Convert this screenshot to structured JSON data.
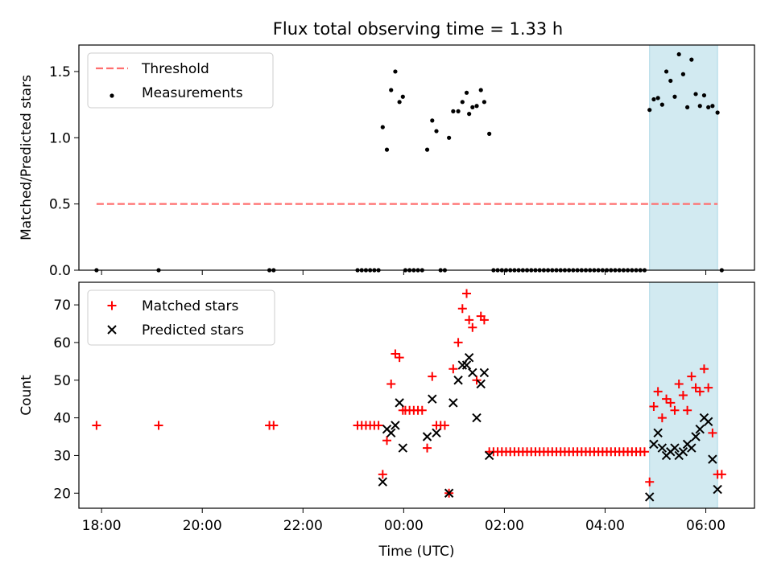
{
  "figure": {
    "title": "Flux total observing time = 1.33 h"
  },
  "chart_data": [
    {
      "type": "scatter",
      "title": "Flux total observing time = 1.33 h",
      "xlabel": "",
      "ylabel": "Matched/Predicted stars",
      "xlim": [
        "17:33",
        "06:58"
      ],
      "ylim": [
        0,
        1.7
      ],
      "yticks": [
        0.0,
        0.5,
        1.0,
        1.5
      ],
      "ytick_labels": [
        "0.0",
        "0.5",
        "1.0",
        "1.5"
      ],
      "x_tick_labels_shown": false,
      "legend_position": "upper left",
      "shaded_interval": {
        "from": "04:53",
        "to": "06:14",
        "color": "#add8e6"
      },
      "threshold": {
        "name": "Threshold",
        "value": 0.5,
        "from": "17:54",
        "to": "06:14",
        "color": "#ff6f6f",
        "style": "dashed"
      },
      "series": [
        {
          "name": "Measurements",
          "color": "#000000",
          "marker": "dot",
          "points": [
            [
              "17:54",
              0.0
            ],
            [
              "19:08",
              0.0
            ],
            [
              "21:20",
              0.0
            ],
            [
              "21:25",
              0.0
            ],
            [
              "23:05",
              0.0
            ],
            [
              "23:10",
              0.0
            ],
            [
              "23:15",
              0.0
            ],
            [
              "23:20",
              0.0
            ],
            [
              "23:25",
              0.0
            ],
            [
              "23:30",
              0.0
            ],
            [
              "23:35",
              1.08
            ],
            [
              "23:40",
              0.91
            ],
            [
              "23:45",
              1.36
            ],
            [
              "23:50",
              1.5
            ],
            [
              "23:55",
              1.27
            ],
            [
              "23:59",
              1.31
            ],
            [
              "00:02",
              0.0
            ],
            [
              "00:07",
              0.0
            ],
            [
              "00:12",
              0.0
            ],
            [
              "00:17",
              0.0
            ],
            [
              "00:22",
              0.0
            ],
            [
              "00:28",
              0.91
            ],
            [
              "00:34",
              1.13
            ],
            [
              "00:39",
              1.05
            ],
            [
              "00:44",
              0.0
            ],
            [
              "00:49",
              0.0
            ],
            [
              "00:54",
              1.0
            ],
            [
              "00:59",
              1.2
            ],
            [
              "01:05",
              1.2
            ],
            [
              "01:10",
              1.27
            ],
            [
              "01:15",
              1.34
            ],
            [
              "01:18",
              1.18
            ],
            [
              "01:22",
              1.23
            ],
            [
              "01:27",
              1.24
            ],
            [
              "01:32",
              1.36
            ],
            [
              "01:36",
              1.27
            ],
            [
              "01:42",
              1.03
            ],
            [
              "01:47",
              0.0
            ],
            [
              "01:52",
              0.0
            ],
            [
              "01:57",
              0.0
            ],
            [
              "02:02",
              0.0
            ],
            [
              "02:07",
              0.0
            ],
            [
              "02:12",
              0.0
            ],
            [
              "02:17",
              0.0
            ],
            [
              "02:22",
              0.0
            ],
            [
              "02:27",
              0.0
            ],
            [
              "02:32",
              0.0
            ],
            [
              "02:37",
              0.0
            ],
            [
              "02:42",
              0.0
            ],
            [
              "02:47",
              0.0
            ],
            [
              "02:52",
              0.0
            ],
            [
              "02:57",
              0.0
            ],
            [
              "03:02",
              0.0
            ],
            [
              "03:07",
              0.0
            ],
            [
              "03:12",
              0.0
            ],
            [
              "03:17",
              0.0
            ],
            [
              "03:22",
              0.0
            ],
            [
              "03:27",
              0.0
            ],
            [
              "03:32",
              0.0
            ],
            [
              "03:37",
              0.0
            ],
            [
              "03:42",
              0.0
            ],
            [
              "03:47",
              0.0
            ],
            [
              "03:52",
              0.0
            ],
            [
              "03:57",
              0.0
            ],
            [
              "04:02",
              0.0
            ],
            [
              "04:07",
              0.0
            ],
            [
              "04:12",
              0.0
            ],
            [
              "04:17",
              0.0
            ],
            [
              "04:22",
              0.0
            ],
            [
              "04:27",
              0.0
            ],
            [
              "04:32",
              0.0
            ],
            [
              "04:37",
              0.0
            ],
            [
              "04:42",
              0.0
            ],
            [
              "04:47",
              0.0
            ],
            [
              "04:53",
              1.21
            ],
            [
              "04:58",
              1.29
            ],
            [
              "05:03",
              1.3
            ],
            [
              "05:08",
              1.25
            ],
            [
              "05:13",
              1.5
            ],
            [
              "05:18",
              1.43
            ],
            [
              "05:23",
              1.31
            ],
            [
              "05:28",
              1.63
            ],
            [
              "05:33",
              1.48
            ],
            [
              "05:38",
              1.23
            ],
            [
              "05:43",
              1.59
            ],
            [
              "05:48",
              1.33
            ],
            [
              "05:53",
              1.24
            ],
            [
              "05:58",
              1.32
            ],
            [
              "06:03",
              1.23
            ],
            [
              "06:08",
              1.24
            ],
            [
              "06:14",
              1.19
            ],
            [
              "06:19",
              0.0
            ]
          ]
        }
      ]
    },
    {
      "type": "scatter",
      "title": "",
      "xlabel": "Time (UTC)",
      "ylabel": "Count",
      "xlim": [
        "17:33",
        "06:58"
      ],
      "ylim": [
        16,
        76
      ],
      "yticks": [
        20,
        30,
        40,
        50,
        60,
        70
      ],
      "ytick_labels": [
        "20",
        "30",
        "40",
        "50",
        "60",
        "70"
      ],
      "xticks": [
        "18:00",
        "20:00",
        "22:00",
        "00:00",
        "02:00",
        "04:00",
        "06:00"
      ],
      "legend_position": "upper left",
      "shaded_interval": {
        "from": "04:53",
        "to": "06:14",
        "color": "#add8e6"
      },
      "series": [
        {
          "name": "Matched stars",
          "color": "#ff0000",
          "marker": "plus",
          "points": [
            [
              "17:54",
              38
            ],
            [
              "19:08",
              38
            ],
            [
              "21:20",
              38
            ],
            [
              "21:25",
              38
            ],
            [
              "23:05",
              38
            ],
            [
              "23:10",
              38
            ],
            [
              "23:15",
              38
            ],
            [
              "23:20",
              38
            ],
            [
              "23:25",
              38
            ],
            [
              "23:30",
              38
            ],
            [
              "23:35",
              25
            ],
            [
              "23:40",
              34
            ],
            [
              "23:45",
              49
            ],
            [
              "23:50",
              57
            ],
            [
              "23:55",
              56
            ],
            [
              "23:59",
              42
            ],
            [
              "00:02",
              42
            ],
            [
              "00:07",
              42
            ],
            [
              "00:12",
              42
            ],
            [
              "00:17",
              42
            ],
            [
              "00:22",
              42
            ],
            [
              "00:28",
              32
            ],
            [
              "00:34",
              51
            ],
            [
              "00:39",
              38
            ],
            [
              "00:44",
              38
            ],
            [
              "00:49",
              38
            ],
            [
              "00:54",
              20
            ],
            [
              "00:59",
              53
            ],
            [
              "01:05",
              60
            ],
            [
              "01:10",
              69
            ],
            [
              "01:15",
              73
            ],
            [
              "01:18",
              66
            ],
            [
              "01:22",
              64
            ],
            [
              "01:27",
              50
            ],
            [
              "01:32",
              67
            ],
            [
              "01:36",
              66
            ],
            [
              "01:42",
              31
            ],
            [
              "01:47",
              31
            ],
            [
              "01:52",
              31
            ],
            [
              "01:57",
              31
            ],
            [
              "02:02",
              31
            ],
            [
              "02:07",
              31
            ],
            [
              "02:12",
              31
            ],
            [
              "02:17",
              31
            ],
            [
              "02:22",
              31
            ],
            [
              "02:27",
              31
            ],
            [
              "02:32",
              31
            ],
            [
              "02:37",
              31
            ],
            [
              "02:42",
              31
            ],
            [
              "02:47",
              31
            ],
            [
              "02:52",
              31
            ],
            [
              "02:57",
              31
            ],
            [
              "03:02",
              31
            ],
            [
              "03:07",
              31
            ],
            [
              "03:12",
              31
            ],
            [
              "03:17",
              31
            ],
            [
              "03:22",
              31
            ],
            [
              "03:27",
              31
            ],
            [
              "03:32",
              31
            ],
            [
              "03:37",
              31
            ],
            [
              "03:42",
              31
            ],
            [
              "03:47",
              31
            ],
            [
              "03:52",
              31
            ],
            [
              "03:57",
              31
            ],
            [
              "04:02",
              31
            ],
            [
              "04:07",
              31
            ],
            [
              "04:12",
              31
            ],
            [
              "04:17",
              31
            ],
            [
              "04:22",
              31
            ],
            [
              "04:27",
              31
            ],
            [
              "04:32",
              31
            ],
            [
              "04:37",
              31
            ],
            [
              "04:42",
              31
            ],
            [
              "04:47",
              31
            ],
            [
              "04:53",
              23
            ],
            [
              "04:58",
              43
            ],
            [
              "05:03",
              47
            ],
            [
              "05:08",
              40
            ],
            [
              "05:13",
              45
            ],
            [
              "05:18",
              44
            ],
            [
              "05:23",
              42
            ],
            [
              "05:28",
              49
            ],
            [
              "05:33",
              46
            ],
            [
              "05:38",
              42
            ],
            [
              "05:43",
              51
            ],
            [
              "05:48",
              48
            ],
            [
              "05:53",
              47
            ],
            [
              "05:58",
              53
            ],
            [
              "06:03",
              48
            ],
            [
              "06:08",
              36
            ],
            [
              "06:14",
              25
            ],
            [
              "06:19",
              25
            ]
          ]
        },
        {
          "name": "Predicted stars",
          "color": "#000000",
          "marker": "x",
          "points": [
            [
              "23:35",
              23
            ],
            [
              "23:40",
              37
            ],
            [
              "23:45",
              36
            ],
            [
              "23:50",
              38
            ],
            [
              "23:55",
              44
            ],
            [
              "23:59",
              32
            ],
            [
              "00:28",
              35
            ],
            [
              "00:34",
              45
            ],
            [
              "00:39",
              36
            ],
            [
              "00:54",
              20
            ],
            [
              "00:59",
              44
            ],
            [
              "01:05",
              50
            ],
            [
              "01:10",
              54
            ],
            [
              "01:15",
              54
            ],
            [
              "01:18",
              56
            ],
            [
              "01:22",
              52
            ],
            [
              "01:27",
              40
            ],
            [
              "01:32",
              49
            ],
            [
              "01:36",
              52
            ],
            [
              "01:42",
              30
            ],
            [
              "04:53",
              19
            ],
            [
              "04:58",
              33
            ],
            [
              "05:03",
              36
            ],
            [
              "05:08",
              32
            ],
            [
              "05:13",
              30
            ],
            [
              "05:18",
              31
            ],
            [
              "05:23",
              32
            ],
            [
              "05:28",
              30
            ],
            [
              "05:33",
              31
            ],
            [
              "05:38",
              33
            ],
            [
              "05:43",
              32
            ],
            [
              "05:48",
              35
            ],
            [
              "05:53",
              37
            ],
            [
              "05:58",
              40
            ],
            [
              "06:03",
              39
            ],
            [
              "06:08",
              29
            ],
            [
              "06:14",
              21
            ]
          ]
        }
      ]
    }
  ]
}
